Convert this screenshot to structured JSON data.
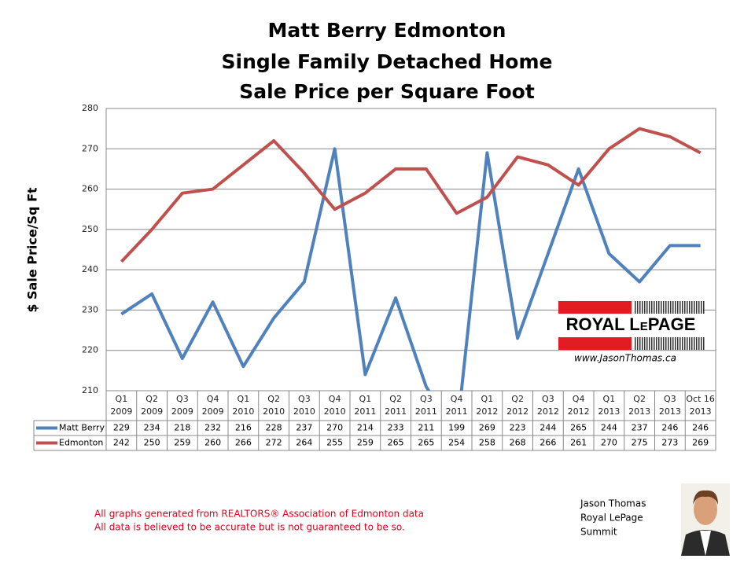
{
  "chart_data": {
    "type": "line",
    "title": [
      "Matt Berry Edmonton",
      "Single Family Detached Home",
      "Sale Price per Square Foot"
    ],
    "y_label": "$ Sale Price/Sq Ft",
    "categories": [
      [
        "Q1",
        "2009"
      ],
      [
        "Q2",
        "2009"
      ],
      [
        "Q3",
        "2009"
      ],
      [
        "Q4",
        "2009"
      ],
      [
        "Q1",
        "2010"
      ],
      [
        "Q2",
        "2010"
      ],
      [
        "Q3",
        "2010"
      ],
      [
        "Q4",
        "2010"
      ],
      [
        "Q1",
        "2011"
      ],
      [
        "Q2",
        "2011"
      ],
      [
        "Q3",
        "2011"
      ],
      [
        "Q4",
        "2011"
      ],
      [
        "Q1",
        "2012"
      ],
      [
        "Q2",
        "2012"
      ],
      [
        "Q3",
        "2012"
      ],
      [
        "Q4",
        "2012"
      ],
      [
        "Q1",
        "2013"
      ],
      [
        "Q2",
        "2013"
      ],
      [
        "Q3",
        "2013"
      ],
      [
        "Oct 16",
        "2013"
      ]
    ],
    "series": [
      {
        "name": "Matt Berry",
        "color": "#4f81bd",
        "values": [
          229,
          234,
          218,
          232,
          216,
          228,
          237,
          270,
          214,
          233,
          211,
          199,
          269,
          223,
          244,
          265,
          244,
          237,
          246,
          246
        ]
      },
      {
        "name": "Edmonton",
        "color": "#c0504d",
        "values": [
          242,
          250,
          259,
          260,
          266,
          272,
          264,
          255,
          259,
          265,
          265,
          254,
          258,
          268,
          266,
          261,
          270,
          275,
          273,
          269
        ]
      }
    ],
    "ylim": [
      210,
      280
    ],
    "yticks": [
      210,
      220,
      230,
      240,
      250,
      260,
      270,
      280
    ],
    "grid": true
  },
  "branding": {
    "logo": "ROYAL LePAGE",
    "website": "www.JasonThomas.ca",
    "agent": [
      "Jason Thomas",
      "Royal LePage",
      "Summit"
    ]
  },
  "footer": [
    "All graphs generated from REALTORS® Association of Edmonton data",
    "All data is believed to be accurate but is not guaranteed to be so."
  ]
}
